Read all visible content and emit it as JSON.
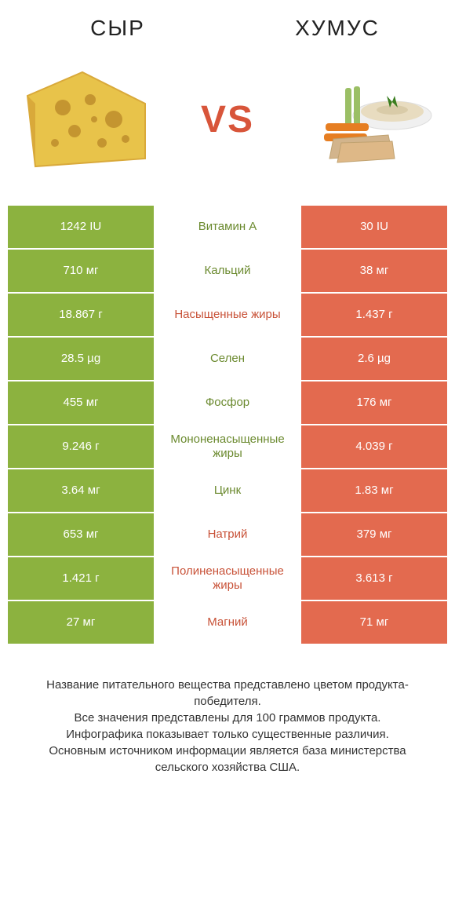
{
  "header": {
    "left_title": "СЫР",
    "right_title": "ХУМУС",
    "vs": "VS"
  },
  "colors": {
    "left": "#8cb23f",
    "right": "#e36a4f",
    "left_text": "#6b8a2f",
    "right_text": "#c85238",
    "vs": "#d8553a",
    "bg": "#ffffff",
    "cheese_fill": "#e8c34a",
    "cheese_rind": "#d9a93a",
    "cheese_hole": "#c49530",
    "plate": "#f0f0f0",
    "hummus": "#e8dcc0",
    "carrot": "#e67e22",
    "celery": "#9bbf65",
    "pita": "#d2b48c",
    "parsley": "#3a7d1f"
  },
  "rows": [
    {
      "left": "1242 IU",
      "mid": "Витамин A",
      "right": "30 IU",
      "winner": "left"
    },
    {
      "left": "710 мг",
      "mid": "Кальций",
      "right": "38 мг",
      "winner": "left"
    },
    {
      "left": "18.867 г",
      "mid": "Насыщенные жиры",
      "right": "1.437 г",
      "winner": "right"
    },
    {
      "left": "28.5 µg",
      "mid": "Селен",
      "right": "2.6 µg",
      "winner": "left"
    },
    {
      "left": "455 мг",
      "mid": "Фосфор",
      "right": "176 мг",
      "winner": "left"
    },
    {
      "left": "9.246 г",
      "mid": "Мононенасыщенные жиры",
      "right": "4.039 г",
      "winner": "left"
    },
    {
      "left": "3.64 мг",
      "mid": "Цинк",
      "right": "1.83 мг",
      "winner": "left"
    },
    {
      "left": "653 мг",
      "mid": "Натрий",
      "right": "379 мг",
      "winner": "right"
    },
    {
      "left": "1.421 г",
      "mid": "Полиненасыщенные жиры",
      "right": "3.613 г",
      "winner": "right"
    },
    {
      "left": "27 мг",
      "mid": "Магний",
      "right": "71 мг",
      "winner": "right"
    }
  ],
  "footer": {
    "line1": "Название питательного вещества представлено цветом продукта-победителя.",
    "line2": "Все значения представлены для 100 граммов продукта.",
    "line3": "Инфографика показывает только существенные различия.",
    "line4": "Основным источником информации является база министерства сельского хозяйства США."
  }
}
